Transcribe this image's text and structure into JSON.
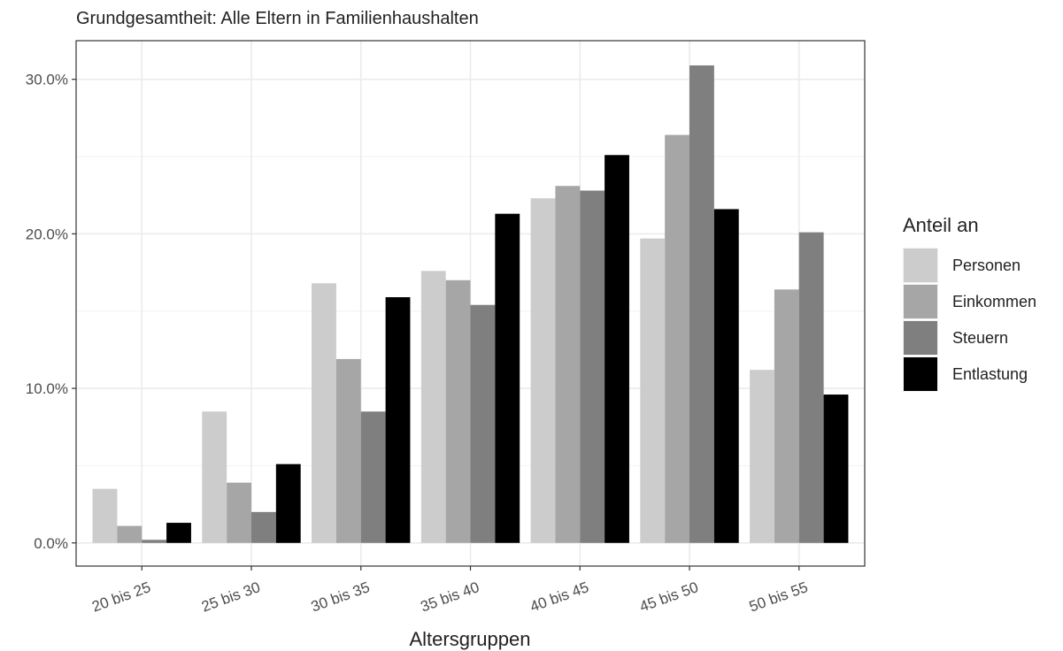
{
  "chart_data": {
    "type": "bar",
    "subtitle": "Grundgesamtheit: Alle Eltern in Familienhaushalten",
    "xlabel": "Altersgruppen",
    "ylabel": "",
    "categories": [
      "20 bis 25",
      "25 bis 30",
      "30 bis 35",
      "35 bis 40",
      "40 bis 45",
      "45 bis 50",
      "50 bis 55"
    ],
    "ylim": [
      -1.5,
      32.5
    ],
    "yticks": [
      0,
      10,
      20,
      30
    ],
    "ytick_labels": [
      "0.0%",
      "10.0%",
      "20.0%",
      "30.0%"
    ],
    "grid": true,
    "legend": {
      "title": "Anteil an",
      "position": "right"
    },
    "series": [
      {
        "name": "Personen",
        "color": "#cccccc",
        "values": [
          3.5,
          8.5,
          16.8,
          17.6,
          22.3,
          19.7,
          11.2
        ]
      },
      {
        "name": "Einkommen",
        "color": "#a6a6a6",
        "values": [
          1.1,
          3.9,
          11.9,
          17.0,
          23.1,
          26.4,
          16.4
        ]
      },
      {
        "name": "Steuern",
        "color": "#7f7f7f",
        "values": [
          0.2,
          2.0,
          8.5,
          15.4,
          22.8,
          30.9,
          20.1
        ]
      },
      {
        "name": "Entlastung",
        "color": "#000000",
        "values": [
          1.3,
          5.1,
          15.9,
          21.3,
          25.1,
          21.6,
          9.6
        ]
      }
    ]
  }
}
